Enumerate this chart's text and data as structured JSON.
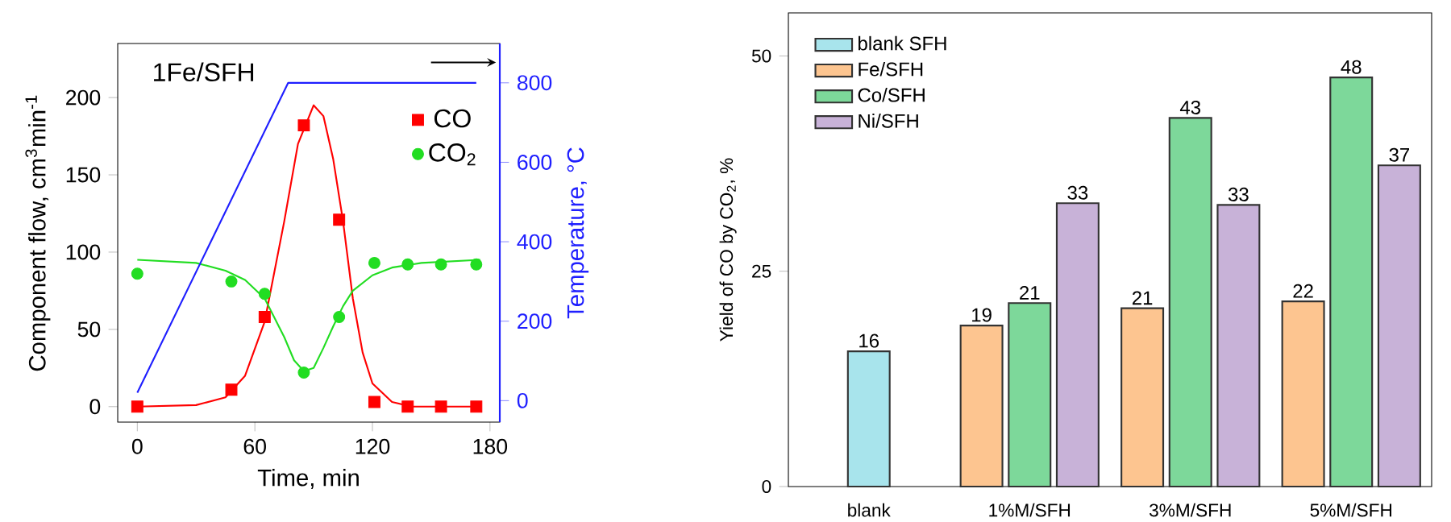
{
  "chart_data": [
    {
      "type": "scatter",
      "xlabel": "Time, min",
      "ylabel": "Component flow, cm$^{3}$min$^{-1}$",
      "y2label": "Temperature, °C",
      "annotations": [
        "1Fe/SFH"
      ],
      "xlim": [
        -10,
        185
      ],
      "xticks": [
        0,
        60,
        120,
        180
      ],
      "ylim": [
        -10,
        235
      ],
      "yticks": [
        0,
        50,
        100,
        150,
        200
      ],
      "y2lim": [
        -54,
        899
      ],
      "y2ticks": [
        0,
        200,
        400,
        600,
        800
      ],
      "legend": "top right",
      "series": [
        {
          "name": "CO",
          "type": "scatter",
          "marker": "square",
          "color": "#ff0000",
          "x": [
            0,
            48,
            65,
            85,
            103,
            121,
            138,
            155,
            173
          ],
          "values": [
            0,
            11,
            58,
            182,
            121,
            3,
            0,
            0,
            0
          ]
        },
        {
          "type": "line",
          "marker": "none",
          "color": "#ff0000",
          "x": [
            0,
            30,
            45,
            55,
            65,
            75,
            82,
            90,
            95,
            100,
            105,
            110,
            115,
            120,
            130,
            140,
            175
          ],
          "values": [
            0,
            1,
            6,
            20,
            55,
            120,
            170,
            195,
            188,
            160,
            120,
            70,
            35,
            15,
            3,
            0,
            0
          ]
        },
        {
          "name": "CO$_{2}$",
          "type": "scatter",
          "marker": "circle",
          "color": "#22dd22",
          "x": [
            0,
            48,
            65,
            85,
            103,
            121,
            138,
            155,
            173
          ],
          "values": [
            86,
            81,
            73,
            22,
            58,
            93,
            92,
            92,
            92
          ]
        },
        {
          "type": "line",
          "marker": "none",
          "color": "#22dd22",
          "x": [
            0,
            30,
            45,
            55,
            65,
            75,
            80,
            85,
            90,
            95,
            100,
            105,
            110,
            120,
            130,
            145,
            175
          ],
          "values": [
            95,
            93,
            88,
            82,
            70,
            45,
            30,
            23,
            25,
            38,
            52,
            65,
            75,
            85,
            90,
            93,
            95
          ]
        },
        {
          "type": "line",
          "marker": "none",
          "color": "#1f1fff",
          "axis": "y2",
          "x": [
            0,
            77,
            173
          ],
          "values": [
            20,
            800,
            800
          ]
        }
      ]
    },
    {
      "type": "bar",
      "ylabel": "Yield of CO by CO$_{2}$, %",
      "categories": [
        "blank",
        "1%M/SFH",
        "3%M/SFH",
        "5%M/SFH"
      ],
      "ylim": [
        0,
        55
      ],
      "yticks": [
        0,
        25,
        50
      ],
      "legend": "top left",
      "series": [
        {
          "name": "blank SFH",
          "color": "#a8e4ec",
          "values": [
            15.7,
            null,
            null,
            null
          ],
          "value_labels": [
            "16",
            null,
            null,
            null
          ]
        },
        {
          "name": "Fe/SFH",
          "color": "#fdc590",
          "values": [
            null,
            18.7,
            20.7,
            21.5
          ],
          "value_labels": [
            null,
            "19",
            "21",
            "22"
          ]
        },
        {
          "name": "Co/SFH",
          "color": "#7dd89a",
          "values": [
            null,
            21.3,
            42.8,
            47.5
          ],
          "value_labels": [
            null,
            "21",
            "43",
            "48"
          ]
        },
        {
          "name": "Ni/SFH",
          "color": "#c8b2d8",
          "values": [
            null,
            32.9,
            32.7,
            37.3
          ],
          "value_labels": [
            null,
            "33",
            "33",
            "37"
          ]
        }
      ]
    }
  ]
}
